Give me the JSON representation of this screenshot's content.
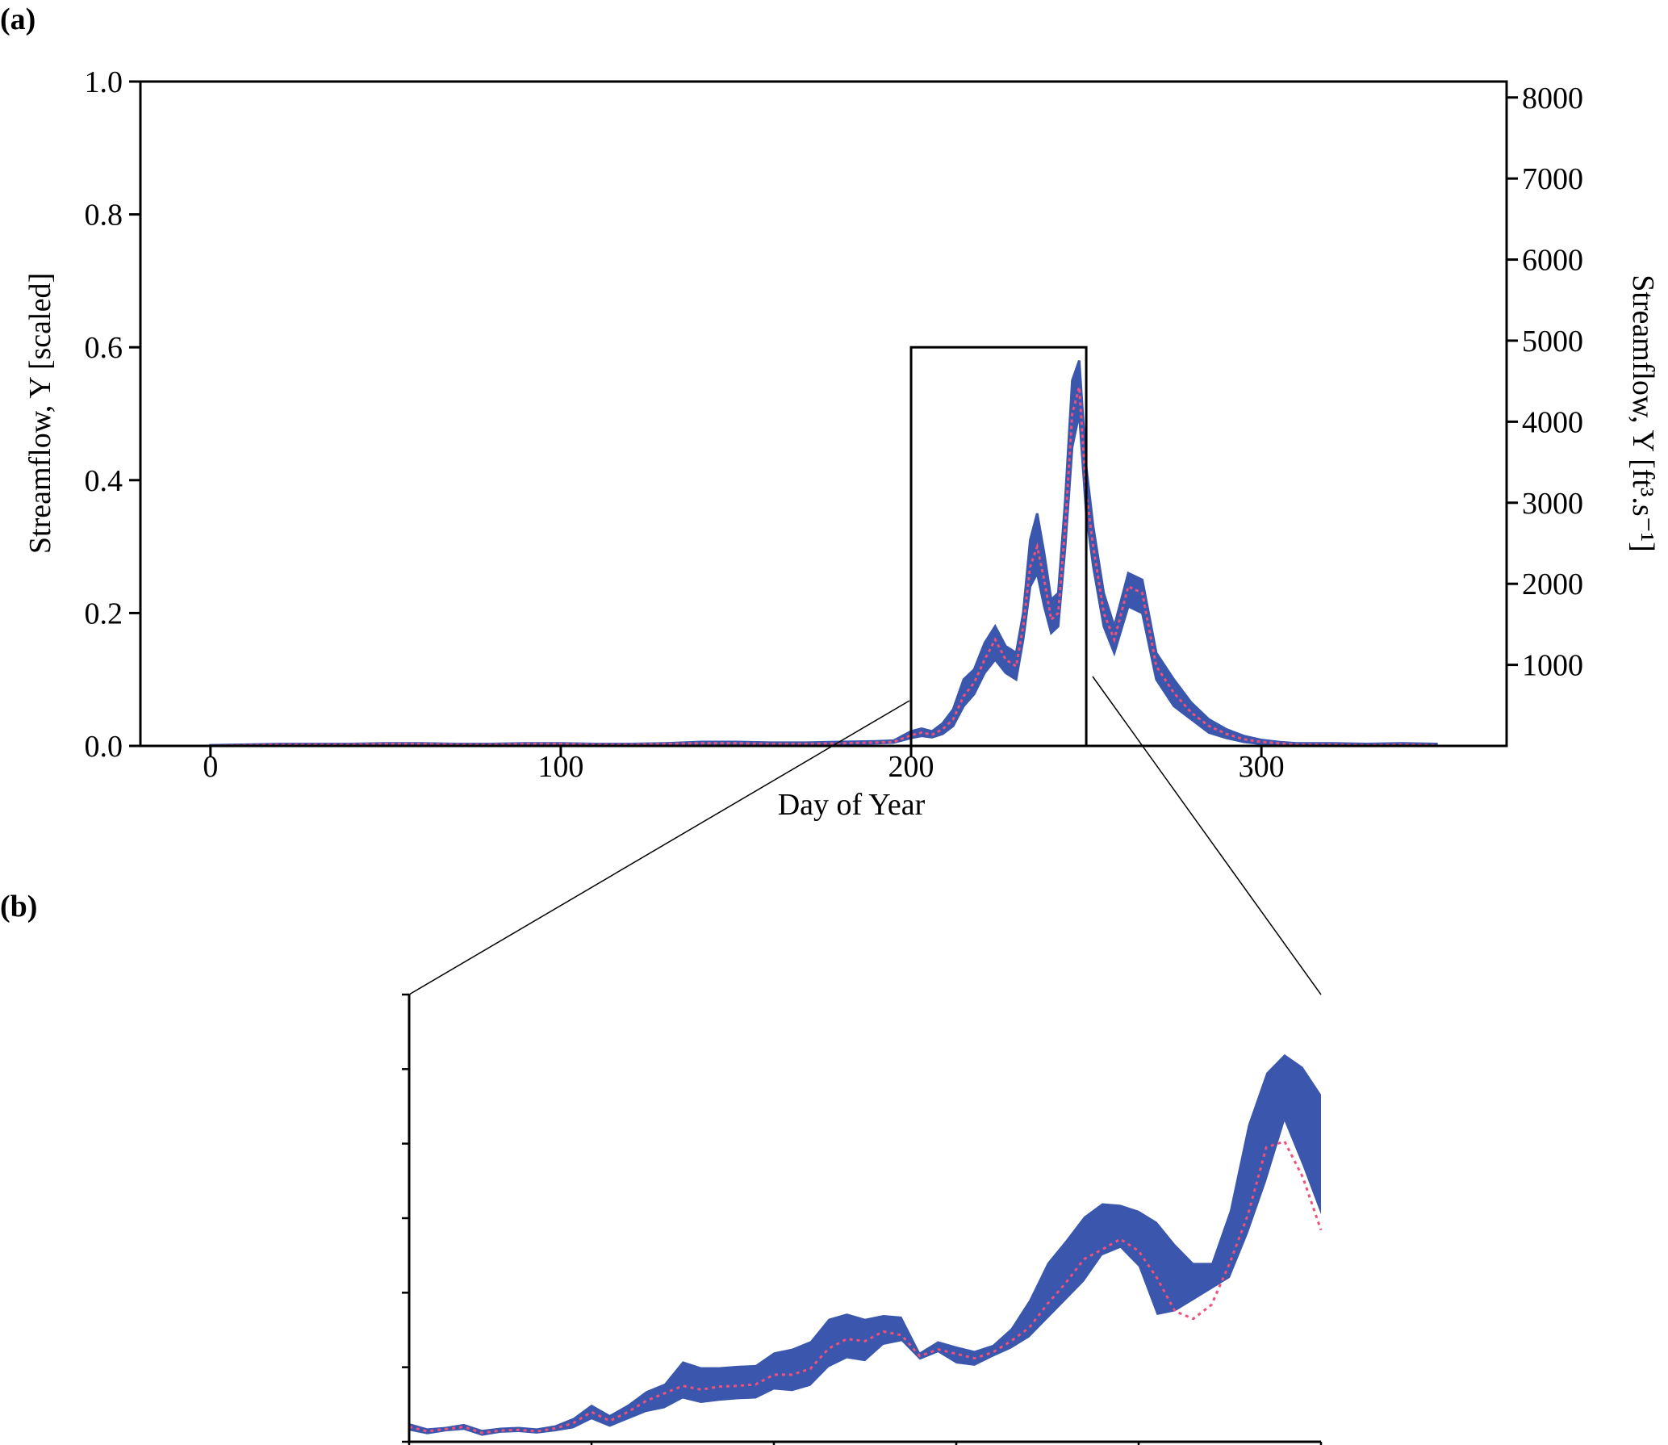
{
  "panel_labels": {
    "a": "(a)",
    "b": "(b)"
  },
  "colors": {
    "band": "#3a56ad",
    "median": "#f0507a",
    "axis": "#000000"
  },
  "chart_data": [
    {
      "panel": "(a)",
      "type": "area",
      "xlabel": "Day of Year",
      "ylabel_left": "Streamflow, Y [scaled]",
      "ylabel_right": "Streamflow, Y [ft³.s⁻¹]",
      "xlim": [
        -20,
        370
      ],
      "ylim": [
        0,
        1.0
      ],
      "xticks": [
        0,
        100,
        200,
        300
      ],
      "xtick_labels": [
        "0",
        "100",
        "200",
        "300"
      ],
      "yticks_left": [
        0.0,
        0.2,
        0.4,
        0.6,
        0.8,
        1.0
      ],
      "ytick_labels_left": [
        "0.0",
        "0.2",
        "0.4",
        "0.6",
        "0.8",
        "1.0"
      ],
      "yticks_right_scaled": [
        0.122,
        0.244,
        0.366,
        0.488,
        0.61,
        0.732,
        0.854,
        0.976
      ],
      "ytick_labels_right": [
        "1000",
        "2000",
        "3000",
        "4000",
        "5000",
        "6000",
        "7000",
        "8000"
      ],
      "zoom_box": {
        "x": [
          200,
          250
        ],
        "y": [
          0,
          0.6
        ]
      },
      "x": [
        0,
        10,
        20,
        30,
        40,
        50,
        60,
        70,
        80,
        90,
        100,
        110,
        120,
        130,
        140,
        150,
        160,
        170,
        180,
        190,
        195,
        200,
        203,
        206,
        209,
        212,
        215,
        218,
        221,
        224,
        227,
        230,
        232,
        234,
        236,
        238,
        240,
        242,
        244,
        246,
        248,
        250,
        252,
        255,
        258,
        262,
        266,
        270,
        275,
        280,
        285,
        290,
        295,
        300,
        305,
        310,
        320,
        330,
        340,
        350
      ],
      "median": [
        0.0,
        0.001,
        0.002,
        0.002,
        0.002,
        0.003,
        0.003,
        0.002,
        0.002,
        0.003,
        0.003,
        0.002,
        0.002,
        0.003,
        0.004,
        0.004,
        0.003,
        0.003,
        0.004,
        0.005,
        0.006,
        0.016,
        0.02,
        0.017,
        0.025,
        0.04,
        0.075,
        0.095,
        0.13,
        0.16,
        0.13,
        0.12,
        0.18,
        0.27,
        0.3,
        0.25,
        0.19,
        0.2,
        0.33,
        0.5,
        0.54,
        0.38,
        0.3,
        0.2,
        0.16,
        0.24,
        0.23,
        0.12,
        0.08,
        0.05,
        0.03,
        0.018,
        0.01,
        0.006,
        0.004,
        0.002,
        0.002,
        0.001,
        0.002,
        0.001
      ],
      "lower": [
        0.0,
        0.0,
        0.001,
        0.001,
        0.001,
        0.002,
        0.002,
        0.001,
        0.001,
        0.002,
        0.002,
        0.001,
        0.001,
        0.002,
        0.003,
        0.003,
        0.002,
        0.002,
        0.003,
        0.004,
        0.005,
        0.012,
        0.015,
        0.013,
        0.018,
        0.03,
        0.06,
        0.078,
        0.11,
        0.13,
        0.11,
        0.1,
        0.16,
        0.24,
        0.26,
        0.21,
        0.17,
        0.18,
        0.3,
        0.45,
        0.5,
        0.35,
        0.27,
        0.18,
        0.14,
        0.21,
        0.2,
        0.1,
        0.06,
        0.04,
        0.02,
        0.012,
        0.006,
        0.003,
        0.002,
        0.001,
        0.001,
        0.0,
        0.001,
        0.0
      ],
      "upper": [
        0.001,
        0.002,
        0.003,
        0.003,
        0.003,
        0.004,
        0.004,
        0.003,
        0.003,
        0.004,
        0.004,
        0.003,
        0.003,
        0.004,
        0.006,
        0.006,
        0.005,
        0.005,
        0.006,
        0.007,
        0.008,
        0.022,
        0.026,
        0.022,
        0.034,
        0.055,
        0.1,
        0.115,
        0.155,
        0.18,
        0.15,
        0.14,
        0.2,
        0.31,
        0.35,
        0.29,
        0.22,
        0.23,
        0.37,
        0.55,
        0.58,
        0.42,
        0.33,
        0.23,
        0.18,
        0.26,
        0.25,
        0.14,
        0.1,
        0.065,
        0.04,
        0.025,
        0.015,
        0.009,
        0.006,
        0.004,
        0.004,
        0.003,
        0.004,
        0.003
      ]
    },
    {
      "panel": "(b)",
      "type": "area",
      "xlabel": "",
      "ylabel": "",
      "xlim": [
        200,
        250
      ],
      "ylim": [
        0,
        0.6
      ],
      "xticks": [
        200,
        210,
        220,
        230,
        240,
        250
      ],
      "yticks": [
        0,
        0.1,
        0.2,
        0.3,
        0.4,
        0.5,
        0.6
      ],
      "x": [
        200,
        201,
        202,
        203,
        204,
        205,
        206,
        207,
        208,
        209,
        210,
        211,
        212,
        213,
        214,
        215,
        216,
        217,
        218,
        219,
        220,
        221,
        222,
        223,
        224,
        225,
        226,
        227,
        228,
        229,
        230,
        231,
        232,
        233,
        234,
        235,
        236,
        237,
        238,
        239,
        240,
        241,
        242,
        243,
        244,
        245,
        246,
        247,
        248,
        249,
        250
      ],
      "median": [
        0.02,
        0.014,
        0.017,
        0.02,
        0.012,
        0.015,
        0.016,
        0.014,
        0.018,
        0.025,
        0.04,
        0.028,
        0.04,
        0.055,
        0.065,
        0.075,
        0.07,
        0.074,
        0.075,
        0.077,
        0.09,
        0.09,
        0.098,
        0.125,
        0.138,
        0.135,
        0.148,
        0.143,
        0.115,
        0.124,
        0.118,
        0.112,
        0.12,
        0.135,
        0.153,
        0.185,
        0.213,
        0.245,
        0.258,
        0.272,
        0.256,
        0.22,
        0.175,
        0.165,
        0.184,
        0.24,
        0.305,
        0.395,
        0.403,
        0.355,
        0.284
      ],
      "lower": [
        0.015,
        0.01,
        0.014,
        0.016,
        0.008,
        0.012,
        0.013,
        0.011,
        0.014,
        0.018,
        0.03,
        0.02,
        0.03,
        0.04,
        0.045,
        0.058,
        0.052,
        0.055,
        0.057,
        0.058,
        0.07,
        0.068,
        0.075,
        0.1,
        0.112,
        0.108,
        0.13,
        0.135,
        0.11,
        0.12,
        0.105,
        0.102,
        0.114,
        0.125,
        0.14,
        0.165,
        0.19,
        0.215,
        0.25,
        0.26,
        0.235,
        0.17,
        0.175,
        0.19,
        0.205,
        0.22,
        0.28,
        0.35,
        0.43,
        0.37,
        0.305
      ],
      "upper": [
        0.025,
        0.018,
        0.02,
        0.024,
        0.016,
        0.019,
        0.02,
        0.018,
        0.022,
        0.032,
        0.05,
        0.036,
        0.05,
        0.068,
        0.078,
        0.108,
        0.1,
        0.1,
        0.102,
        0.103,
        0.12,
        0.125,
        0.135,
        0.165,
        0.172,
        0.165,
        0.17,
        0.168,
        0.12,
        0.135,
        0.128,
        0.122,
        0.13,
        0.152,
        0.19,
        0.24,
        0.27,
        0.302,
        0.32,
        0.318,
        0.31,
        0.295,
        0.265,
        0.24,
        0.24,
        0.31,
        0.425,
        0.495,
        0.52,
        0.503,
        0.466
      ]
    }
  ]
}
